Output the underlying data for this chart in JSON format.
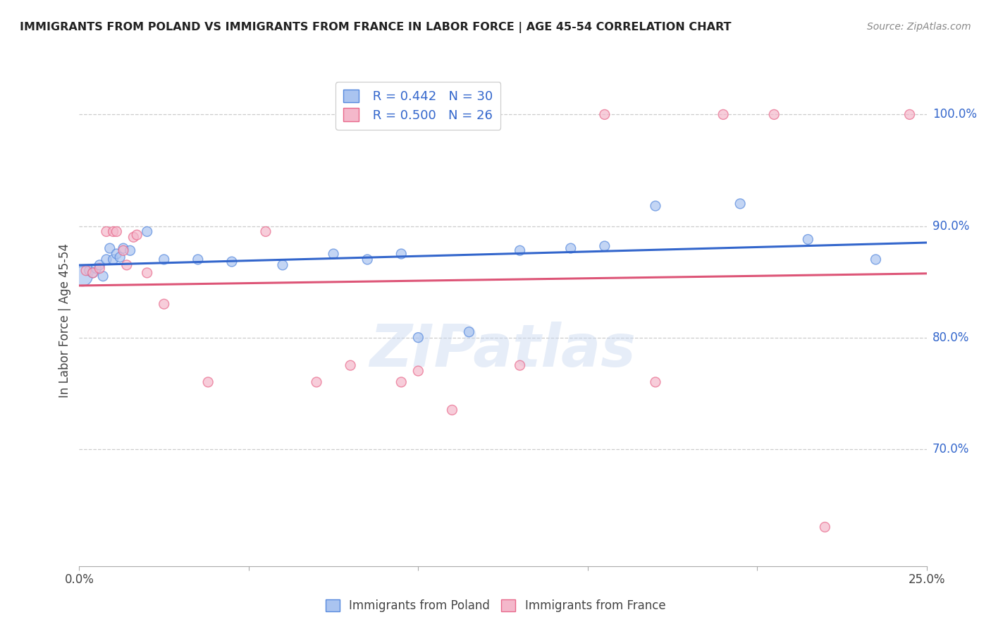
{
  "title": "IMMIGRANTS FROM POLAND VS IMMIGRANTS FROM FRANCE IN LABOR FORCE | AGE 45-54 CORRELATION CHART",
  "source": "Source: ZipAtlas.com",
  "ylabel": "In Labor Force | Age 45-54",
  "xlim": [
    0.0,
    0.25
  ],
  "ylim": [
    0.595,
    1.035
  ],
  "xticks": [
    0.0,
    0.05,
    0.1,
    0.15,
    0.2,
    0.25
  ],
  "xtick_labels": [
    "0.0%",
    "",
    "",
    "",
    "",
    "25.0%"
  ],
  "ytick_labels_right": [
    "70.0%",
    "80.0%",
    "90.0%",
    "100.0%"
  ],
  "yticks_right": [
    0.7,
    0.8,
    0.9,
    1.0
  ],
  "legend_r1": "R = 0.442",
  "legend_n1": "N = 30",
  "legend_r2": "R = 0.500",
  "legend_n2": "N = 26",
  "poland_color": "#aac4f0",
  "france_color": "#f4b8cb",
  "poland_edge_color": "#5588dd",
  "france_edge_color": "#e8678a",
  "poland_line_color": "#3366cc",
  "france_line_color": "#dd5577",
  "watermark": "ZIPatlas",
  "poland_scatter_x": [
    0.001,
    0.003,
    0.004,
    0.005,
    0.006,
    0.007,
    0.008,
    0.009,
    0.01,
    0.011,
    0.012,
    0.013,
    0.015,
    0.02,
    0.025,
    0.035,
    0.045,
    0.06,
    0.075,
    0.085,
    0.095,
    0.1,
    0.115,
    0.13,
    0.145,
    0.155,
    0.17,
    0.195,
    0.215,
    0.235
  ],
  "poland_scatter_y": [
    0.855,
    0.86,
    0.858,
    0.862,
    0.865,
    0.855,
    0.87,
    0.88,
    0.87,
    0.875,
    0.872,
    0.88,
    0.878,
    0.895,
    0.87,
    0.87,
    0.868,
    0.865,
    0.875,
    0.87,
    0.875,
    0.8,
    0.805,
    0.878,
    0.88,
    0.882,
    0.918,
    0.92,
    0.888,
    0.87
  ],
  "france_scatter_x": [
    0.002,
    0.004,
    0.006,
    0.008,
    0.01,
    0.011,
    0.013,
    0.014,
    0.016,
    0.017,
    0.02,
    0.025,
    0.038,
    0.055,
    0.07,
    0.08,
    0.095,
    0.1,
    0.11,
    0.13,
    0.155,
    0.17,
    0.19,
    0.205,
    0.22,
    0.245
  ],
  "france_scatter_y": [
    0.86,
    0.858,
    0.862,
    0.895,
    0.895,
    0.895,
    0.878,
    0.865,
    0.89,
    0.892,
    0.858,
    0.83,
    0.76,
    0.895,
    0.76,
    0.775,
    0.76,
    0.77,
    0.735,
    0.775,
    1.0,
    0.76,
    1.0,
    1.0,
    0.63,
    1.0
  ],
  "poland_sizes": [
    400,
    100,
    100,
    100,
    100,
    100,
    100,
    100,
    100,
    100,
    100,
    100,
    100,
    100,
    100,
    100,
    100,
    100,
    100,
    100,
    100,
    100,
    100,
    100,
    100,
    100,
    100,
    100,
    100,
    100
  ],
  "france_sizes": [
    100,
    100,
    100,
    100,
    100,
    100,
    100,
    100,
    100,
    100,
    100,
    100,
    100,
    100,
    100,
    100,
    100,
    100,
    100,
    100,
    100,
    100,
    100,
    100,
    100,
    100
  ]
}
